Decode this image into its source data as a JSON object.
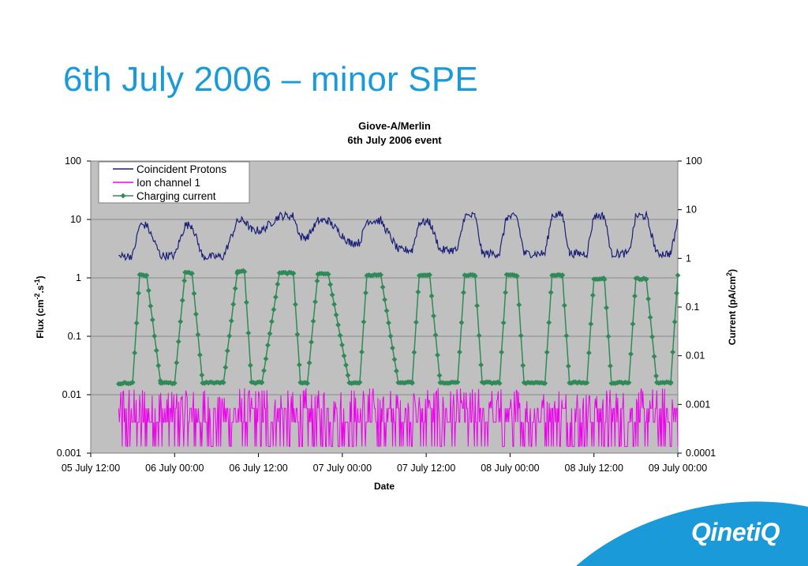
{
  "slide": {
    "title": "6th July 2006 – minor SPE",
    "logo_text": "QinetiQ",
    "accent_color": "#1a9ad9",
    "logo_bg_color": "#1a9ad9"
  },
  "chart_data": {
    "type": "line",
    "title_line1": "Giove-A/Merlin",
    "title_line2": "6th July 2006 event",
    "xlabel": "Date",
    "ylabel_left_parts": [
      "Flux (cm",
      "-2",
      ".s",
      "-1",
      ")"
    ],
    "ylabel_right_parts": [
      "Current (pA/cm",
      "2",
      ")"
    ],
    "x_ticks": [
      "05 July 12:00",
      "06 July 00:00",
      "06 July 12:00",
      "07 July 00:00",
      "07 July 12:00",
      "08 July 00:00",
      "08 July 12:00",
      "09 July 00:00"
    ],
    "xlim_hours": [
      0,
      84
    ],
    "y_left": {
      "scale": "log",
      "ylim": [
        0.001,
        100
      ],
      "ticks": [
        "0.001",
        "0.01",
        "0.1",
        "1",
        "10",
        "100"
      ]
    },
    "y_right": {
      "scale": "log",
      "ylim": [
        0.0001,
        100
      ],
      "ticks": [
        "0.0001",
        "0.001",
        "0.01",
        "0.1",
        "1",
        "10",
        "100"
      ]
    },
    "grid": true,
    "plot_background": "#c0c0c0",
    "legend_position": "top-left",
    "series": [
      {
        "name": "Coincident Protons",
        "axis": "left",
        "color": "#1a1f78",
        "x": [
          4,
          6,
          7,
          8,
          10,
          12,
          13.5,
          14.5,
          16,
          19,
          21,
          22,
          23,
          24.5,
          27,
          29,
          30,
          31,
          32.5,
          34,
          37,
          38.5,
          39.5,
          41.5,
          44,
          46,
          47,
          48.5,
          50,
          52.5,
          53.5,
          55,
          56,
          58.5,
          59.5,
          61,
          62,
          65,
          66,
          67.5,
          68.5,
          71,
          72,
          73.5,
          74.5,
          77,
          78,
          79.5,
          81,
          83,
          84
        ],
        "y": [
          2.3,
          2.4,
          8.0,
          8.0,
          2.4,
          2.4,
          8.0,
          8.0,
          2.3,
          2.3,
          9.5,
          9.5,
          6.5,
          6.5,
          11.5,
          11.5,
          5.0,
          5.0,
          9.5,
          9.5,
          4.0,
          4.0,
          9.5,
          9.5,
          3.0,
          3.0,
          9.0,
          9.0,
          3.0,
          3.0,
          11.5,
          11.5,
          2.6,
          2.6,
          11.0,
          11.0,
          2.6,
          2.6,
          12.0,
          12.0,
          2.6,
          2.6,
          11.5,
          11.5,
          2.6,
          2.6,
          11.5,
          11.5,
          2.6,
          2.6,
          9.5
        ]
      },
      {
        "name": "Ion channel 1",
        "axis": "left",
        "color": "#ee00ee",
        "x_range": [
          4,
          84
        ],
        "y_band": [
          0.0013,
          0.013
        ]
      },
      {
        "name": "Charging current",
        "axis": "right",
        "color": "#2e8b57",
        "marker": "diamond",
        "x": [
          4,
          6,
          7,
          8,
          10,
          12,
          13.5,
          14.5,
          16,
          19,
          21,
          22,
          23,
          24.5,
          27,
          29,
          30,
          31,
          32.5,
          34,
          37,
          38.5,
          39.5,
          41.5,
          44,
          46,
          47,
          48.5,
          50,
          52.5,
          53.5,
          55,
          56,
          58.5,
          59.5,
          61,
          62,
          65,
          66,
          67.5,
          68.5,
          71,
          72,
          73.5,
          74.5,
          77,
          78,
          79.5,
          81,
          83,
          84
        ],
        "y": [
          0.0027,
          0.0028,
          0.45,
          0.45,
          0.0028,
          0.0027,
          0.5,
          0.5,
          0.0028,
          0.0028,
          0.55,
          0.55,
          0.0028,
          0.0028,
          0.5,
          0.5,
          0.0028,
          0.0028,
          0.48,
          0.48,
          0.0028,
          0.0028,
          0.45,
          0.45,
          0.0028,
          0.0028,
          0.45,
          0.45,
          0.0028,
          0.0028,
          0.45,
          0.45,
          0.0028,
          0.0028,
          0.45,
          0.45,
          0.0028,
          0.0028,
          0.45,
          0.45,
          0.0028,
          0.0028,
          0.38,
          0.38,
          0.0028,
          0.0028,
          0.38,
          0.38,
          0.0028,
          0.0028,
          0.45
        ]
      }
    ]
  }
}
